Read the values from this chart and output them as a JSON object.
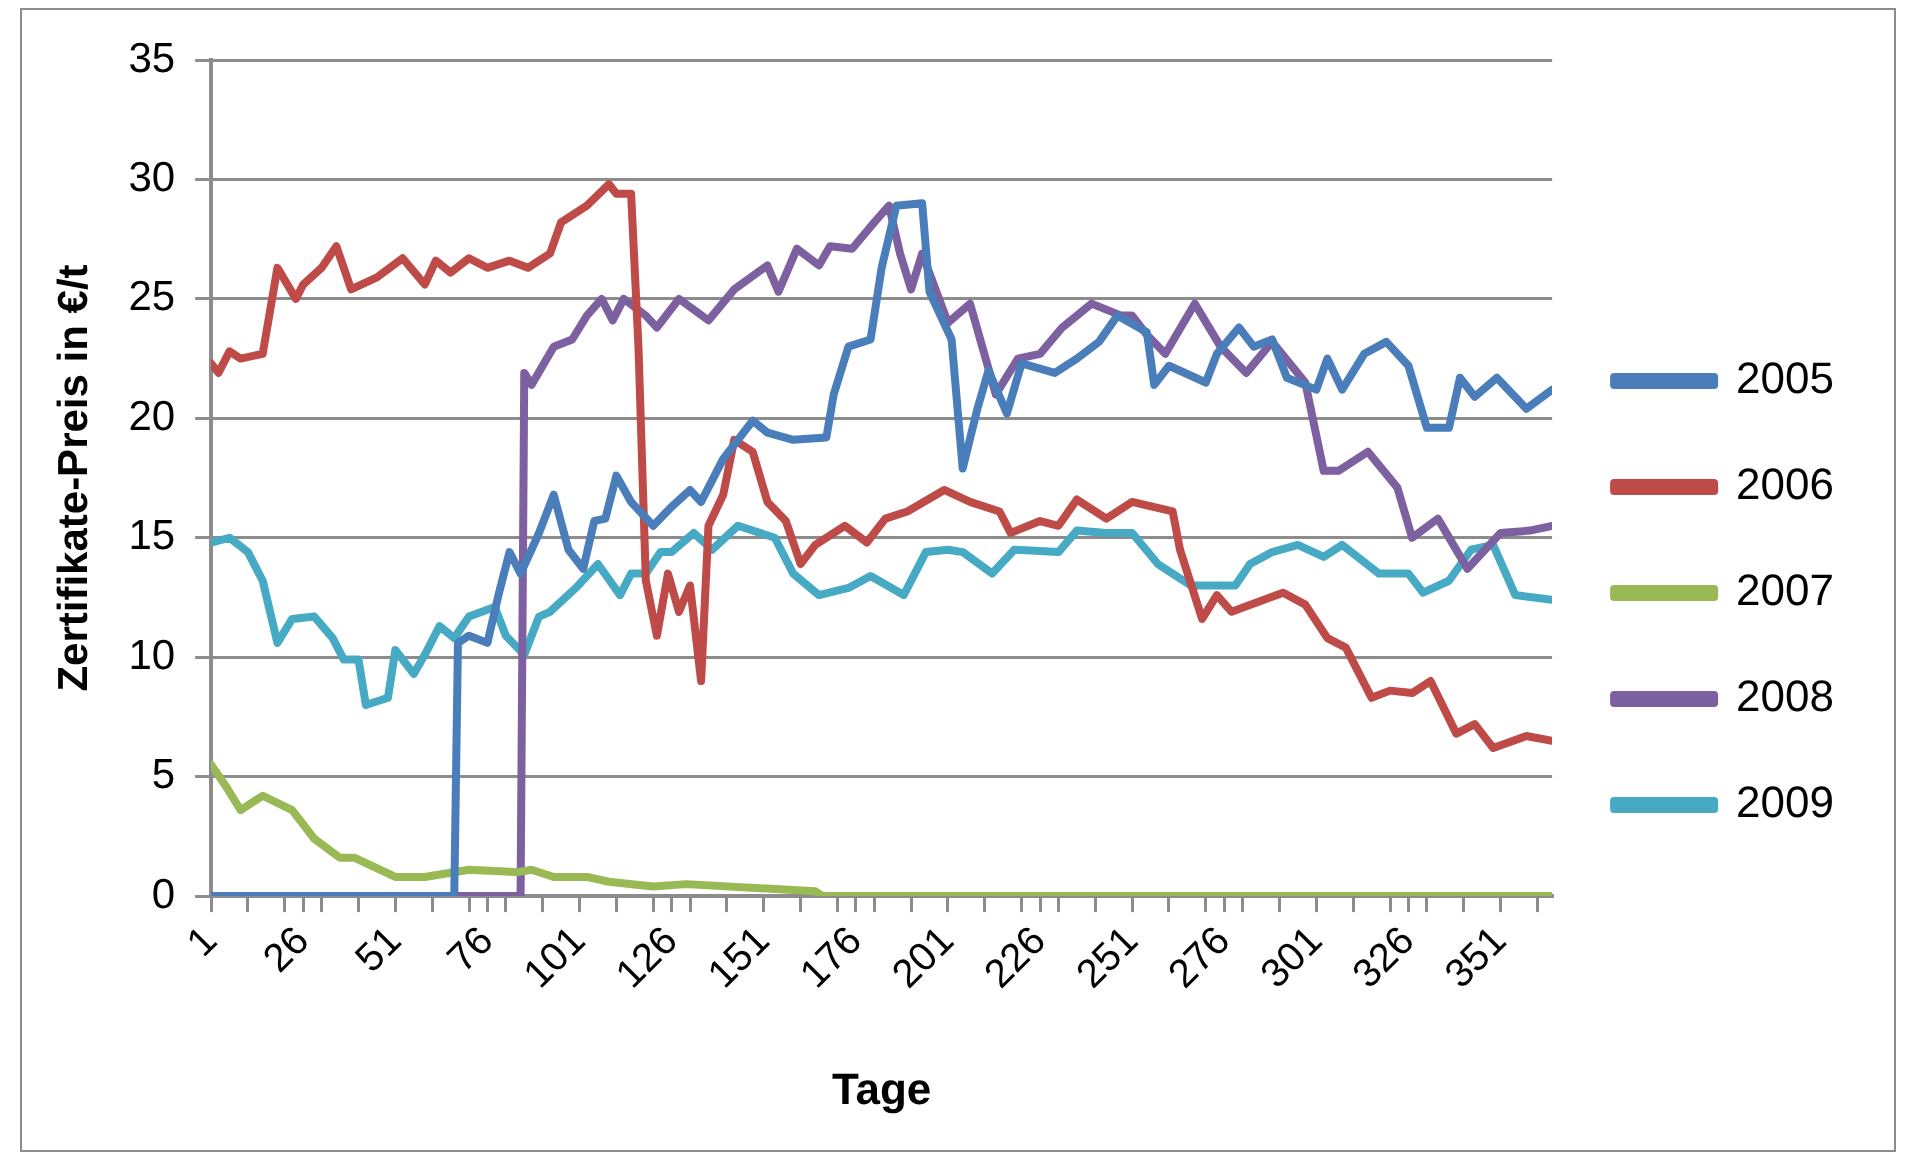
{
  "chart_data": {
    "type": "line",
    "xlabel": "Tage",
    "ylabel": "Zertifikate-Preis in €/t",
    "xlim": [
      1,
      365
    ],
    "ylim": [
      0,
      35
    ],
    "yticks": [
      0,
      5,
      10,
      15,
      20,
      25,
      30,
      35
    ],
    "xticks": [
      1,
      {
        "value": 11,
        "label": null
      },
      {
        "value": 21,
        "label": null
      },
      26,
      {
        "value": 31,
        "label": null
      },
      {
        "value": 41,
        "label": null
      },
      51,
      {
        "value": 61,
        "label": null
      },
      {
        "value": 71,
        "label": null
      },
      76,
      {
        "value": 81,
        "label": null
      },
      {
        "value": 91,
        "label": null
      },
      101,
      {
        "value": 111,
        "label": null
      },
      {
        "value": 121,
        "label": null
      },
      126,
      {
        "value": 131,
        "label": null
      },
      {
        "value": 141,
        "label": null
      },
      151,
      {
        "value": 161,
        "label": null
      },
      {
        "value": 171,
        "label": null
      },
      176,
      {
        "value": 181,
        "label": null
      },
      {
        "value": 191,
        "label": null
      },
      201,
      {
        "value": 211,
        "label": null
      },
      {
        "value": 221,
        "label": null
      },
      226,
      {
        "value": 231,
        "label": null
      },
      {
        "value": 241,
        "label": null
      },
      251,
      {
        "value": 261,
        "label": null
      },
      {
        "value": 271,
        "label": null
      },
      276,
      {
        "value": 281,
        "label": null
      },
      {
        "value": 291,
        "label": null
      },
      301,
      {
        "value": 311,
        "label": null
      },
      {
        "value": 321,
        "label": null
      },
      326,
      {
        "value": 331,
        "label": null
      },
      {
        "value": 341,
        "label": null
      },
      351,
      {
        "value": 361,
        "label": null
      }
    ],
    "grid": "y",
    "legend": "right",
    "marker": "none",
    "line_style": "solid",
    "series": [
      {
        "name": "2005",
        "color": "#4a7ebb",
        "x": [
          1,
          67,
          68,
          71,
          76,
          79,
          82,
          85,
          90,
          94,
          98,
          102,
          105,
          108,
          111,
          115,
          121,
          126,
          131,
          134,
          140,
          148,
          152,
          159,
          168,
          170,
          174,
          180,
          183,
          187,
          194,
          196,
          202,
          205,
          209,
          212,
          217,
          221,
          230,
          236,
          242,
          247,
          255,
          257,
          261,
          271,
          274,
          280,
          284,
          289,
          293,
          301,
          304,
          308,
          314,
          320,
          326,
          331,
          337,
          340,
          344,
          350,
          358,
          365
        ],
        "values": [
          0,
          0,
          10.6,
          10.9,
          10.6,
          12.6,
          14.4,
          13.5,
          15.2,
          16.8,
          14.5,
          13.7,
          15.7,
          15.8,
          17.6,
          16.5,
          15.5,
          16.3,
          17.0,
          16.5,
          18.3,
          19.9,
          19.4,
          19.1,
          19.2,
          21.0,
          23.0,
          23.3,
          26.3,
          28.9,
          29.0,
          25.3,
          23.3,
          17.9,
          20.4,
          22.0,
          20.2,
          22.3,
          21.9,
          22.5,
          23.2,
          24.3,
          23.6,
          21.4,
          22.2,
          21.5,
          22.7,
          23.8,
          23.0,
          23.3,
          21.7,
          21.2,
          22.5,
          21.2,
          22.7,
          23.2,
          22.2,
          19.6,
          19.6,
          21.7,
          20.9,
          21.7,
          20.4,
          21.2
        ]
      },
      {
        "name": "2006",
        "color": "#be4b48",
        "x": [
          1,
          3,
          6,
          9,
          15,
          19,
          24,
          26,
          31,
          35,
          39,
          46,
          53,
          59,
          62,
          66,
          71,
          76,
          82,
          87,
          93,
          96,
          103,
          109,
          111,
          115,
          117,
          119,
          122,
          125,
          128,
          131,
          134,
          136,
          140,
          143,
          148,
          152,
          157,
          161,
          165,
          173,
          179,
          184,
          190,
          200,
          207,
          215,
          218,
          226,
          231,
          236,
          244,
          251,
          262,
          264,
          270,
          274,
          278,
          292,
          298,
          304,
          309,
          316,
          321,
          327,
          332,
          339,
          344,
          349,
          358,
          365
        ],
        "values": [
          22.3,
          21.9,
          22.8,
          22.5,
          22.7,
          26.3,
          25.0,
          25.6,
          26.3,
          27.2,
          25.4,
          25.9,
          26.7,
          25.6,
          26.6,
          26.1,
          26.7,
          26.3,
          26.6,
          26.3,
          26.9,
          28.2,
          28.9,
          29.8,
          29.4,
          29.4,
          23.0,
          13.2,
          10.9,
          13.5,
          11.9,
          13.0,
          9.0,
          15.5,
          16.8,
          19.1,
          18.6,
          16.5,
          15.7,
          13.9,
          14.7,
          15.5,
          14.8,
          15.8,
          16.1,
          17.0,
          16.5,
          16.1,
          15.2,
          15.7,
          15.5,
          16.6,
          15.8,
          16.5,
          16.1,
          14.5,
          11.6,
          12.6,
          11.9,
          12.7,
          12.2,
          10.8,
          10.4,
          8.3,
          8.6,
          8.5,
          9.0,
          6.8,
          7.2,
          6.2,
          6.7,
          6.5
        ]
      },
      {
        "name": "2007",
        "color": "#98b954",
        "x": [
          1,
          5,
          9,
          15,
          23,
          29,
          36,
          40,
          51,
          59,
          71,
          84,
          88,
          94,
          103,
          109,
          121,
          130,
          165,
          167,
          365
        ],
        "values": [
          5.5,
          4.6,
          3.6,
          4.2,
          3.6,
          2.4,
          1.6,
          1.6,
          0.8,
          0.8,
          1.1,
          1.0,
          1.1,
          0.8,
          0.8,
          0.6,
          0.4,
          0.5,
          0.2,
          0,
          0
        ]
      },
      {
        "name": "2008",
        "color": "#7d60a0",
        "x": [
          1,
          85,
          86,
          88,
          94,
          99,
          103,
          107,
          110,
          113,
          119,
          122,
          128,
          136,
          143,
          152,
          155,
          160,
          166,
          169,
          175,
          181,
          185,
          188,
          191,
          194,
          201,
          207,
          214,
          220,
          226,
          232,
          240,
          248,
          251,
          255,
          260,
          268,
          275,
          282,
          289,
          298,
          303,
          307,
          315,
          323,
          327,
          334,
          342,
          351,
          359,
          365
        ],
        "values": [
          0,
          0,
          21.9,
          21.4,
          23.0,
          23.3,
          24.3,
          25.0,
          24.1,
          25.0,
          24.3,
          23.8,
          25.0,
          24.1,
          25.4,
          26.4,
          25.3,
          27.1,
          26.4,
          27.2,
          27.1,
          28.2,
          28.9,
          26.9,
          25.4,
          26.9,
          24.0,
          24.8,
          21.0,
          22.5,
          22.7,
          23.8,
          24.8,
          24.3,
          24.3,
          23.5,
          22.7,
          24.8,
          23.0,
          21.9,
          23.2,
          21.5,
          17.8,
          17.8,
          18.6,
          17.1,
          15.0,
          15.8,
          13.7,
          15.2,
          15.3,
          15.5
        ]
      },
      {
        "name": "2009",
        "color": "#46aac5",
        "x": [
          1,
          6,
          11,
          15,
          19,
          23,
          29,
          34,
          37,
          41,
          43,
          49,
          51,
          56,
          59,
          63,
          67,
          71,
          78,
          81,
          86,
          90,
          93,
          100,
          106,
          112,
          115,
          119,
          123,
          126,
          132,
          137,
          144,
          154,
          159,
          166,
          174,
          180,
          189,
          195,
          201,
          205,
          213,
          219,
          231,
          236,
          244,
          251,
          258,
          267,
          279,
          283,
          289,
          296,
          303,
          308,
          318,
          326,
          330,
          337,
          343,
          349,
          355,
          365
        ],
        "values": [
          14.8,
          15.0,
          14.4,
          13.2,
          10.6,
          11.6,
          11.7,
          10.8,
          9.9,
          9.9,
          8.0,
          8.3,
          10.3,
          9.3,
          10.1,
          11.3,
          10.8,
          11.7,
          12.1,
          10.9,
          10.1,
          11.7,
          11.9,
          12.9,
          13.9,
          12.6,
          13.5,
          13.5,
          14.4,
          14.4,
          15.2,
          14.5,
          15.5,
          15.0,
          13.5,
          12.6,
          12.9,
          13.4,
          12.6,
          14.4,
          14.5,
          14.4,
          13.5,
          14.5,
          14.4,
          15.3,
          15.2,
          15.2,
          13.9,
          13.0,
          13.0,
          13.9,
          14.4,
          14.7,
          14.2,
          14.7,
          13.5,
          13.5,
          12.7,
          13.2,
          14.5,
          14.7,
          12.6,
          12.4
        ]
      }
    ]
  }
}
